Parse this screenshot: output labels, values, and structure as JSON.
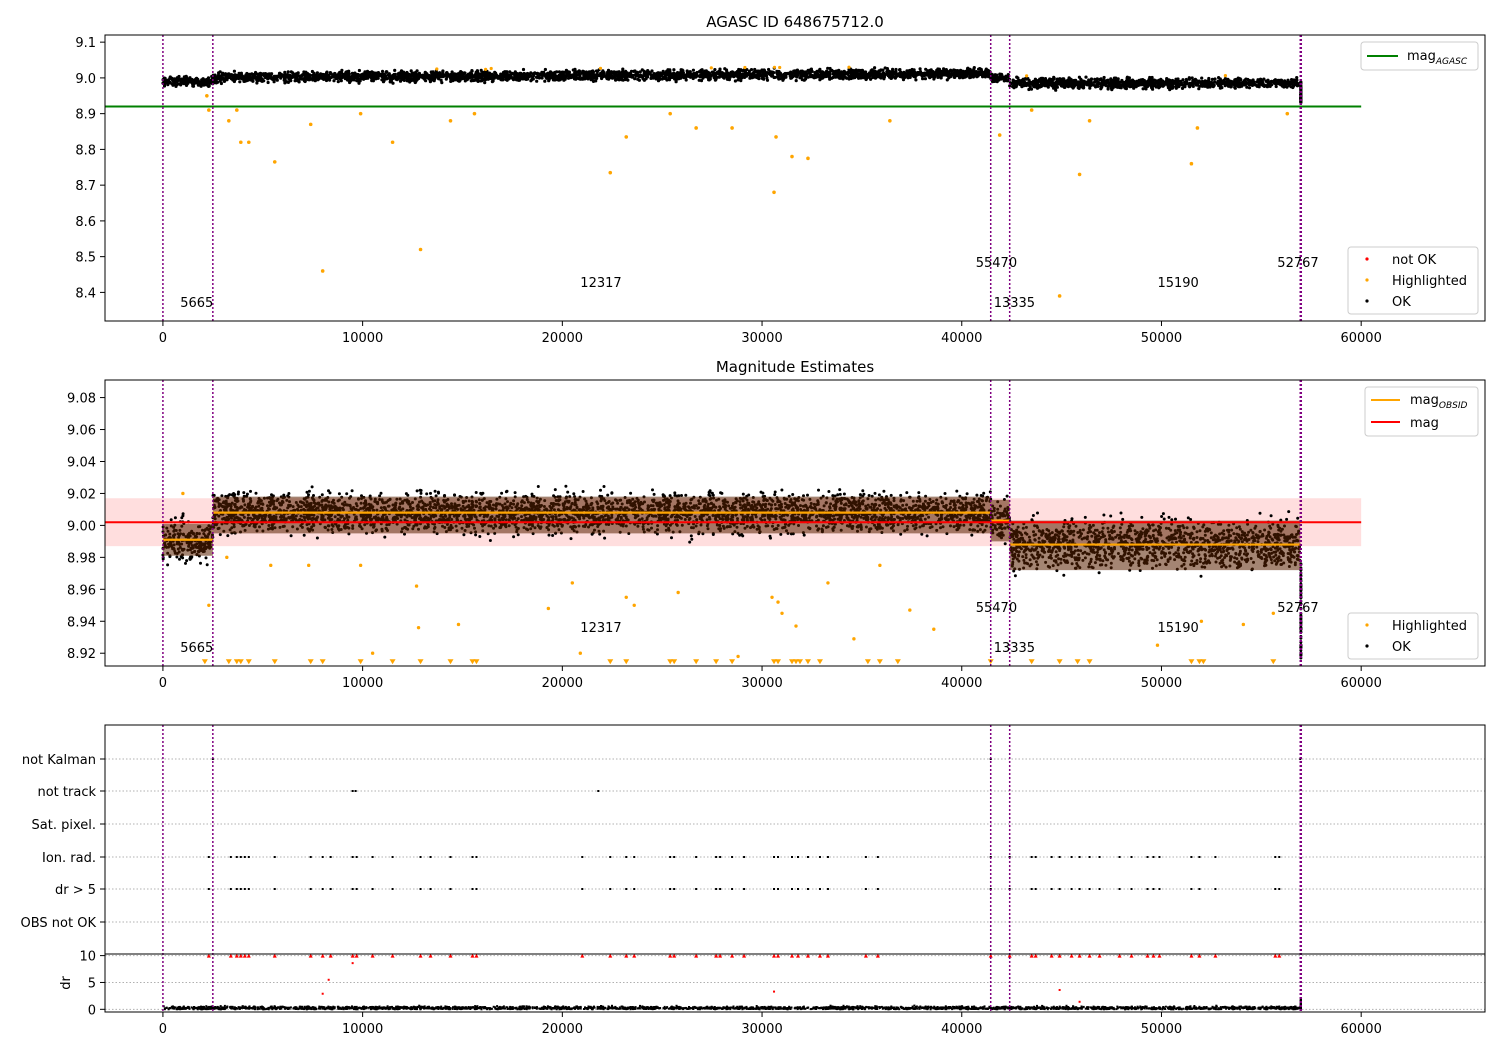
{
  "figure": {
    "title_top": "AGASC ID 648675712.0",
    "title_middle": "Magnitude Estimates"
  },
  "colors": {
    "ok": "#000000",
    "highlighted": "#ffa500",
    "not_ok": "#ff0000",
    "agasc_line": "#008000",
    "mag_line": "#ff0000",
    "mag_obsid_line": "#ffa500",
    "obsid_divider": "#800080",
    "band_fill": "#ff000022",
    "grid": "#b0b0b0"
  },
  "obsids": [
    {
      "label": "5665",
      "time_start": 0
    },
    {
      "label": "12317",
      "time_start": 2500
    },
    {
      "label": "55470",
      "time_start": 41450
    },
    {
      "label": "13335",
      "time_start": 42400
    },
    {
      "label": "15190",
      "time_start": 42500
    },
    {
      "label": "52767",
      "time_start": 56950
    }
  ],
  "chart_data": [
    {
      "type": "scatter",
      "title": "AGASC ID 648675712.0",
      "xlabel": "",
      "ylabel": "",
      "xlim": [
        -2900,
        66200
      ],
      "ylim": [
        8.32,
        9.12
      ],
      "xticks": [
        0,
        10000,
        20000,
        30000,
        40000,
        50000,
        60000
      ],
      "yticks": [
        8.4,
        8.5,
        8.6,
        8.7,
        8.8,
        8.9,
        9.0,
        9.1
      ],
      "mag_agasc": 8.92,
      "legend_top_right": [
        "mag_AGASC"
      ],
      "legend_bottom_right": [
        "not OK",
        "Highlighted",
        "OK"
      ],
      "series": [
        {
          "name": "OK",
          "segments": [
            {
              "x": [
                0,
                2500
              ],
              "mean": 8.99,
              "spread": 0.012
            },
            {
              "x": [
                2500,
                41450
              ],
              "mean": 9.005,
              "spread": 0.014
            },
            {
              "x": [
                41450,
                42400
              ],
              "mean": 9.0,
              "spread": 0.012
            },
            {
              "x": [
                42400,
                56950
              ],
              "mean": 8.985,
              "spread": 0.014
            }
          ]
        },
        {
          "name": "Highlighted",
          "outliers": [
            [
              2200,
              8.95
            ],
            [
              2300,
              8.91
            ],
            [
              3300,
              8.88
            ],
            [
              3700,
              8.91
            ],
            [
              3900,
              8.82
            ],
            [
              4300,
              8.82
            ],
            [
              5600,
              8.765
            ],
            [
              7400,
              8.87
            ],
            [
              8000,
              8.46
            ],
            [
              9900,
              8.9
            ],
            [
              11500,
              8.82
            ],
            [
              12900,
              8.52
            ],
            [
              14400,
              8.88
            ],
            [
              15600,
              8.9
            ],
            [
              22400,
              8.735
            ],
            [
              23200,
              8.835
            ],
            [
              25400,
              8.9
            ],
            [
              26700,
              8.86
            ],
            [
              28500,
              8.86
            ],
            [
              30600,
              8.68
            ],
            [
              30700,
              8.835
            ],
            [
              31500,
              8.78
            ],
            [
              32300,
              8.775
            ],
            [
              36400,
              8.88
            ],
            [
              41900,
              8.84
            ],
            [
              43500,
              8.91
            ],
            [
              44900,
              8.39
            ],
            [
              45900,
              8.73
            ],
            [
              46400,
              8.88
            ],
            [
              51500,
              8.76
            ],
            [
              51800,
              8.86
            ],
            [
              56300,
              8.9
            ]
          ]
        }
      ]
    },
    {
      "type": "scatter",
      "title": "Magnitude Estimates",
      "xlabel": "",
      "ylabel": "",
      "xlim": [
        -2900,
        66200
      ],
      "ylim": [
        8.912,
        9.091
      ],
      "xticks": [
        0,
        10000,
        20000,
        30000,
        40000,
        50000,
        60000
      ],
      "yticks": [
        8.92,
        8.94,
        8.96,
        8.98,
        9.0,
        9.02,
        9.04,
        9.06,
        9.08
      ],
      "mag": 9.002,
      "mag_band": [
        8.987,
        9.017
      ],
      "legend_top_right": [
        "mag_OBSID",
        "mag"
      ],
      "legend_bottom_right": [
        "Highlighted",
        "OK"
      ],
      "mag_obsid": [
        {
          "x": [
            0,
            2500
          ],
          "value": 8.991,
          "band": [
            8.981,
            9.001
          ]
        },
        {
          "x": [
            2500,
            41450
          ],
          "value": 9.008,
          "band": [
            8.995,
            9.018
          ]
        },
        {
          "x": [
            41450,
            42400
          ],
          "value": 9.003,
          "band": [
            8.99,
            9.016
          ]
        },
        {
          "x": [
            42400,
            56950
          ],
          "value": 8.988,
          "band": [
            8.972,
            9.003
          ]
        }
      ],
      "series": [
        {
          "name": "OK",
          "segments": [
            {
              "x": [
                0,
                2500
              ],
              "mean": 8.99,
              "spread": 0.011
            },
            {
              "x": [
                2500,
                41450
              ],
              "mean": 9.008,
              "spread": 0.011
            },
            {
              "x": [
                41450,
                42400
              ],
              "mean": 9.003,
              "spread": 0.011
            },
            {
              "x": [
                42400,
                56950
              ],
              "mean": 8.988,
              "spread": 0.013
            }
          ]
        },
        {
          "name": "Highlighted",
          "outliers": [
            [
              1000,
              9.02
            ],
            [
              2300,
              8.95
            ],
            [
              3200,
              8.98
            ],
            [
              5400,
              8.975
            ],
            [
              7300,
              8.975
            ],
            [
              9900,
              8.975
            ],
            [
              10500,
              8.92
            ],
            [
              12700,
              8.962
            ],
            [
              12800,
              8.936
            ],
            [
              14800,
              8.938
            ],
            [
              19300,
              8.948
            ],
            [
              20500,
              8.964
            ],
            [
              20900,
              8.92
            ],
            [
              23200,
              8.955
            ],
            [
              23600,
              8.95
            ],
            [
              25800,
              8.958
            ],
            [
              28800,
              8.918
            ],
            [
              30500,
              8.955
            ],
            [
              30800,
              8.952
            ],
            [
              31000,
              8.945
            ],
            [
              31700,
              8.937
            ],
            [
              33300,
              8.964
            ],
            [
              34600,
              8.929
            ],
            [
              35900,
              8.975
            ],
            [
              37400,
              8.947
            ],
            [
              38600,
              8.935
            ],
            [
              49800,
              8.925
            ],
            [
              52000,
              8.94
            ],
            [
              54100,
              8.938
            ],
            [
              55600,
              8.945
            ]
          ]
        },
        {
          "name": "below-range markers",
          "x": [
            2100,
            3300,
            3700,
            3900,
            4300,
            5600,
            7400,
            8000,
            9900,
            11500,
            12900,
            14400,
            15500,
            15700,
            22400,
            23200,
            25400,
            25600,
            26700,
            27700,
            28500,
            30600,
            30800,
            31500,
            31700,
            31900,
            32300,
            32900,
            35300,
            35900,
            36800,
            41450,
            43500,
            44900,
            45800,
            46400,
            51500,
            51900,
            52100,
            55600
          ]
        }
      ]
    },
    {
      "type": "scatter",
      "title": "",
      "xlabel": "",
      "ylabel": "dr",
      "xlim": [
        -2900,
        66200
      ],
      "ylim_dr": [
        -0.5,
        10.3
      ],
      "dr_yticks": [
        0,
        5,
        10
      ],
      "flag_rows": [
        "not Kalman",
        "not track",
        "Sat. pixel.",
        "Ion. rad.",
        "dr > 5",
        "OBS not OK"
      ],
      "flags": {
        "not Kalman": [
          2500,
          41450,
          56950
        ],
        "not track": [
          9500,
          9650,
          21800
        ],
        "Sat. pixel.": [],
        "Ion. rad.": [
          2300,
          3400,
          3700,
          3900,
          4100,
          4300,
          5600,
          7400,
          8000,
          8400,
          9500,
          9700,
          10500,
          11500,
          12900,
          13400,
          14400,
          15500,
          15700,
          21000,
          22400,
          23200,
          23600,
          25400,
          25600,
          26700,
          27700,
          27900,
          28500,
          29100,
          30600,
          30800,
          31500,
          31800,
          32300,
          32900,
          33300,
          35200,
          35800,
          41450,
          42400,
          43500,
          43700,
          44500,
          44900,
          45500,
          45900,
          46400,
          46900,
          47900,
          48500,
          49300,
          49600,
          49900,
          51500,
          51900,
          52700,
          55700,
          55900
        ],
        "dr > 5": [
          2300,
          3400,
          3700,
          3900,
          4100,
          4300,
          5600,
          7400,
          8000,
          8400,
          9500,
          9700,
          10500,
          11500,
          12900,
          13400,
          14400,
          15500,
          15700,
          21000,
          22400,
          23200,
          23600,
          25400,
          25600,
          26700,
          27700,
          27900,
          28500,
          29100,
          30600,
          30800,
          31500,
          31800,
          32300,
          32900,
          33300,
          35200,
          35800,
          41450,
          42400,
          43500,
          43700,
          44500,
          44900,
          45500,
          45900,
          46400,
          46900,
          47900,
          48500,
          49300,
          49600,
          49900,
          51500,
          51900,
          52700,
          55700,
          55900
        ],
        "OBS not OK": []
      },
      "dr_baseline": {
        "mean": 0.25,
        "spread": 0.3
      },
      "dr_outliers": [
        [
          8300,
          5.5
        ],
        [
          8000,
          2.9
        ],
        [
          9500,
          8.6
        ],
        [
          30600,
          3.3
        ],
        [
          44900,
          3.6
        ],
        [
          45900,
          1.4
        ]
      ]
    }
  ]
}
